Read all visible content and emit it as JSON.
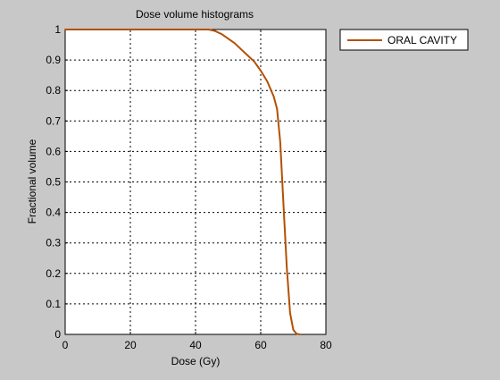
{
  "chart_data": {
    "type": "line",
    "title": "Dose volume histograms",
    "xlabel": "Dose (Gy)",
    "ylabel": "Fractional volume",
    "xlim": [
      0,
      80
    ],
    "ylim": [
      0,
      1
    ],
    "xticks": [
      0,
      20,
      40,
      60,
      80
    ],
    "yticks": [
      0,
      0.1,
      0.2,
      0.3,
      0.4,
      0.5,
      0.6,
      0.7,
      0.8,
      0.9,
      1
    ],
    "ytick_labels": [
      "0",
      "0.1",
      "0.2",
      "0.3",
      "0.4",
      "0.5",
      "0.6",
      "0.7",
      "0.8",
      "0.9",
      "1"
    ],
    "grid": true,
    "legend_position": "outside-top-right",
    "series": [
      {
        "name": "ORAL CAVITY",
        "color": "#b45000",
        "x": [
          0,
          44,
          46,
          48,
          50,
          52,
          54,
          56,
          58,
          60,
          62,
          64,
          65,
          66,
          67,
          68,
          69,
          70,
          71,
          72
        ],
        "y": [
          1,
          1,
          0.995,
          0.985,
          0.97,
          0.955,
          0.935,
          0.915,
          0.895,
          0.865,
          0.83,
          0.78,
          0.74,
          0.63,
          0.42,
          0.22,
          0.07,
          0.015,
          0.002,
          0
        ]
      }
    ]
  }
}
